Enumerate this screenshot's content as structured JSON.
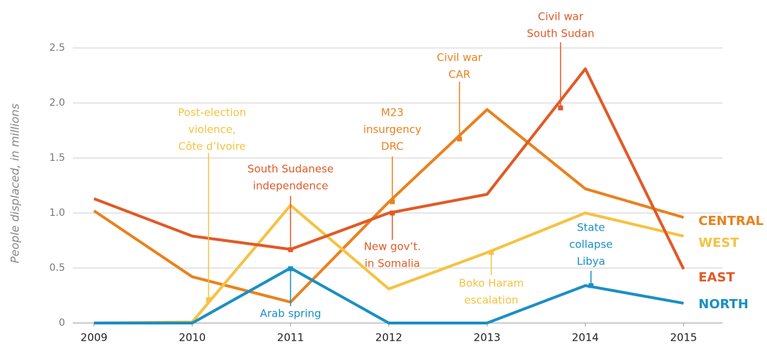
{
  "chart_data": {
    "type": "line",
    "y_label": "People displaced, in millions",
    "x": [
      2009,
      2010,
      2011,
      2012,
      2013,
      2014,
      2015
    ],
    "xlim": [
      2009,
      2015
    ],
    "xticks": [
      2009,
      2010,
      2011,
      2012,
      2013,
      2014,
      2015
    ],
    "ylim": [
      0,
      2.5
    ],
    "yticks": [
      0,
      0.5,
      {
        "value": 1,
        "label": "1.0"
      },
      1.5,
      {
        "value": 2,
        "label": "2.0"
      },
      2.5
    ],
    "grid": true,
    "series": [
      {
        "name": "CENTRAL",
        "color": "#e8821e",
        "values": [
          1.02,
          0.42,
          0.19,
          1.1,
          1.94,
          1.22,
          0.96
        ]
      },
      {
        "name": "WEST",
        "color": "#f5c242",
        "values": [
          0,
          0.01,
          1.07,
          0.31,
          0.64,
          1.0,
          0.79
        ]
      },
      {
        "name": "EAST",
        "color": "#e05a26",
        "values": [
          1.13,
          0.79,
          0.67,
          1.0,
          1.17,
          2.31,
          0.49
        ]
      },
      {
        "name": "NORTH",
        "color": "#1a8fc4",
        "values": [
          0,
          0,
          0.5,
          0,
          0,
          0.34,
          0.18
        ]
      }
    ],
    "annotations": [
      {
        "lines": [
          "Post-election",
          "violence,",
          "Côte d’Ivoire"
        ],
        "color": "#f5c242"
      },
      {
        "lines": [
          "South Sudanese",
          "independence"
        ],
        "color": "#e05a26"
      },
      {
        "lines": [
          "M23",
          "insurgency",
          "DRC"
        ],
        "color": "#e8821e"
      },
      {
        "lines": [
          "Civil war",
          "CAR"
        ],
        "color": "#e8821e"
      },
      {
        "lines": [
          "Civil war",
          "South Sudan"
        ],
        "color": "#e05a26"
      },
      {
        "lines": [
          "New gov’t.",
          "in Somalia"
        ],
        "color": "#e05a26"
      },
      {
        "lines": [
          "Arab spring"
        ],
        "color": "#1a8fc4"
      },
      {
        "lines": [
          "Boko Haram",
          "escalation"
        ],
        "color": "#f5c242"
      },
      {
        "lines": [
          "State",
          "collapse",
          "Libya"
        ],
        "color": "#1a8fc4"
      }
    ]
  }
}
